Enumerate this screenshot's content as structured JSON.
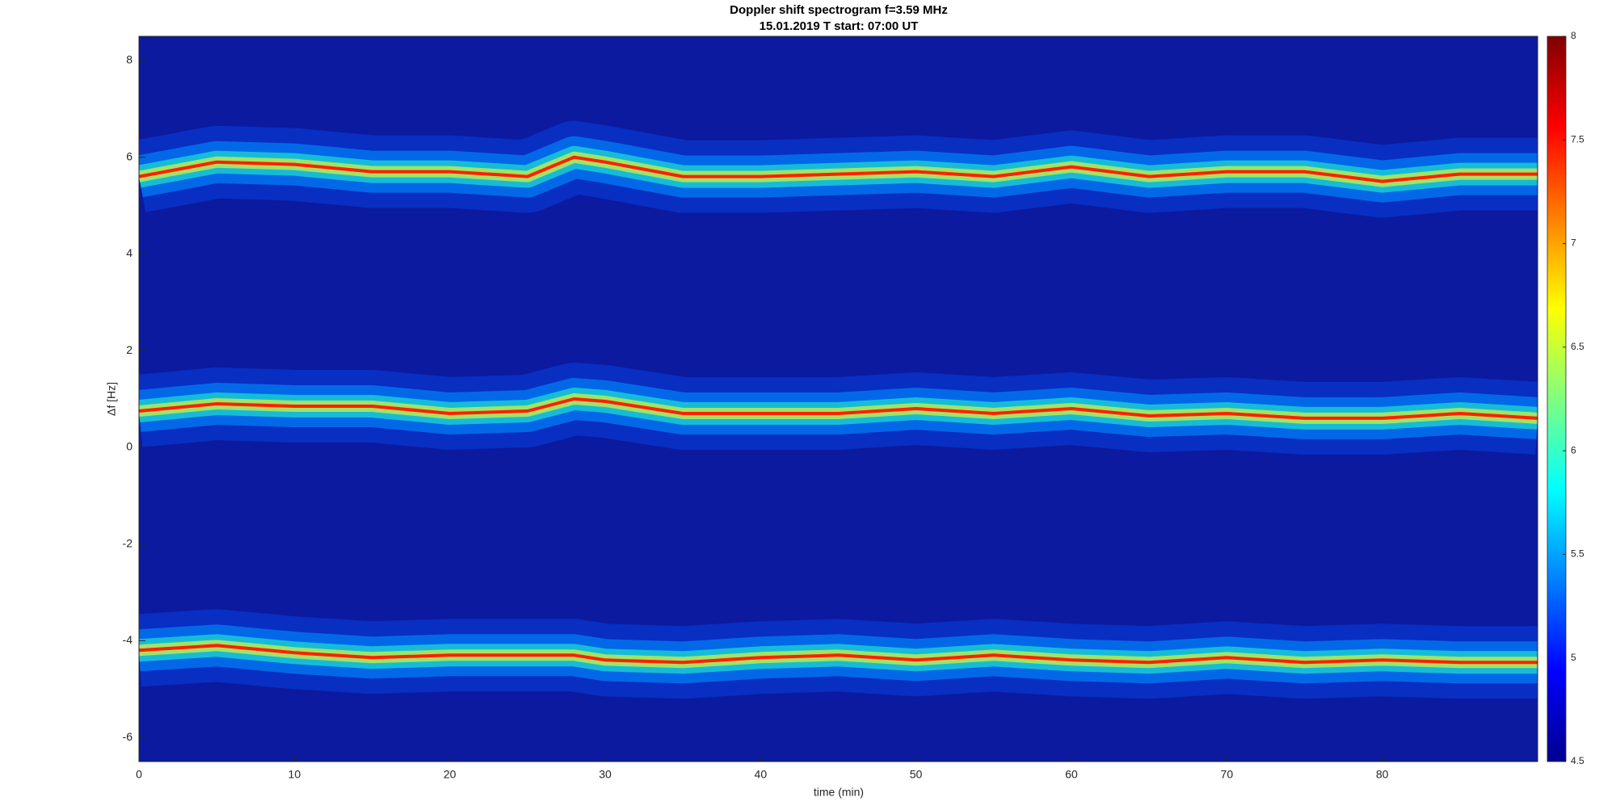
{
  "chart_data": {
    "type": "spectrogram",
    "title": "Doppler shift spectrogram f=3.59 MHz",
    "subtitle": "15.01.2019   T start: 07:00 UT",
    "x_label": "time (min)",
    "y_label": "Δf [Hz]",
    "xlim": [
      0,
      90
    ],
    "xticks": [
      0,
      10,
      20,
      30,
      40,
      50,
      60,
      70,
      80
    ],
    "ylim": [
      -6.5,
      8.5
    ],
    "yticks": [
      -6,
      -4,
      -2,
      0,
      2,
      4,
      6,
      8
    ],
    "colormap": "jet",
    "clim": [
      4.5,
      8
    ],
    "cticks": [
      4.5,
      5,
      5.5,
      6,
      6.5,
      7,
      7.5,
      8
    ],
    "x": [
      0,
      5,
      10,
      15,
      20,
      25,
      28,
      30,
      35,
      40,
      45,
      50,
      55,
      60,
      65,
      70,
      75,
      80,
      85,
      90
    ],
    "series": [
      {
        "color": "#ff2000",
        "values": [
          5.6,
          5.9,
          5.85,
          5.7,
          5.7,
          5.6,
          6.0,
          5.9,
          5.6,
          5.6,
          5.65,
          5.7,
          5.6,
          5.8,
          5.6,
          5.7,
          5.7,
          5.5,
          5.65,
          5.65
        ]
      },
      {
        "color": "#ff2000",
        "values": [
          0.75,
          0.9,
          0.85,
          0.85,
          0.7,
          0.75,
          1.0,
          0.95,
          0.7,
          0.7,
          0.7,
          0.8,
          0.7,
          0.8,
          0.65,
          0.7,
          0.6,
          0.6,
          0.7,
          0.6
        ]
      },
      {
        "color": "#ff2000",
        "values": [
          -4.2,
          -4.1,
          -4.25,
          -4.35,
          -4.3,
          -4.3,
          -4.3,
          -4.4,
          -4.45,
          -4.35,
          -4.3,
          -4.4,
          -4.3,
          -4.4,
          -4.45,
          -4.35,
          -4.45,
          -4.4,
          -4.45,
          -4.45
        ]
      }
    ]
  }
}
